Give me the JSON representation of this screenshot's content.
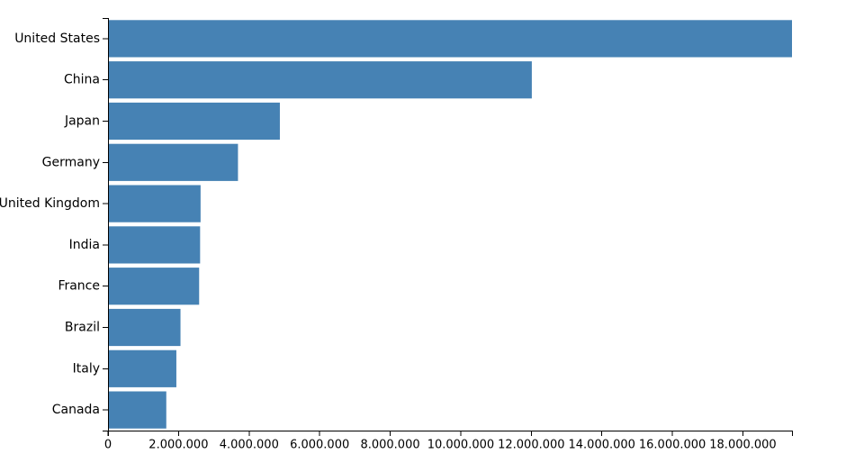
{
  "chart_data": {
    "type": "bar",
    "orientation": "horizontal",
    "categories": [
      "United States",
      "China",
      "Japan",
      "Germany",
      "United Kingdom",
      "India",
      "France",
      "Brazil",
      "Italy",
      "Canada"
    ],
    "values": [
      19390604,
      12014610,
      4872137,
      3684816,
      2624529,
      2611012,
      2583560,
      2054969,
      1937894,
      1652412
    ],
    "xlim": [
      0,
      19390604
    ],
    "x_ticks": [
      0,
      2000000,
      4000000,
      6000000,
      8000000,
      10000000,
      12000000,
      14000000,
      16000000,
      18000000
    ],
    "x_tick_labels": [
      "0",
      "2.000.000",
      "4.000.000",
      "6.000.000",
      "8.000.000",
      "10.000.000",
      "12.000.000",
      "14.000.000",
      "16.000.000",
      "18.000.000"
    ],
    "title": "",
    "xlabel": "",
    "ylabel": "",
    "grid": false,
    "legend": "none",
    "colors": {
      "bar": "#4682b4",
      "axis": "#000000",
      "text": "#000000",
      "background": "#ffffff"
    }
  }
}
